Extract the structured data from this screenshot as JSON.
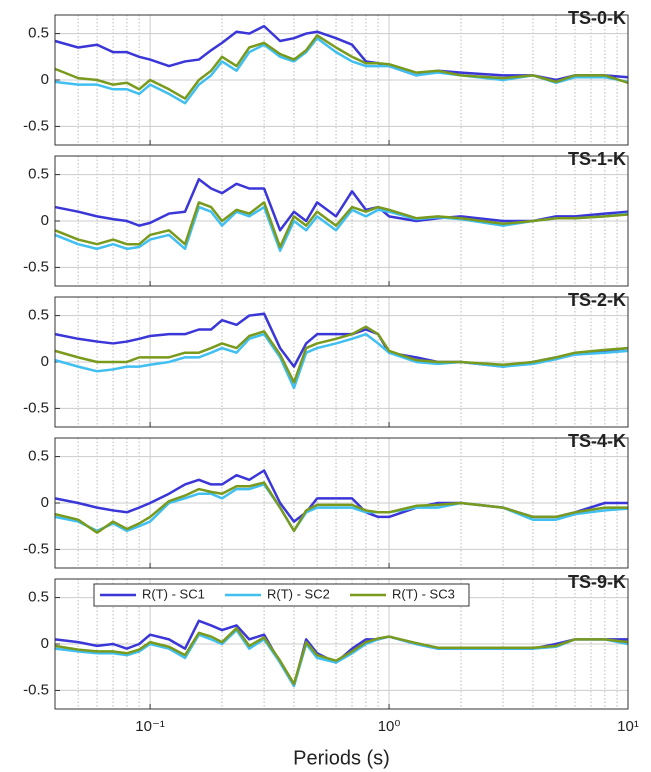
{
  "chart_data": [
    {
      "type": "line",
      "title": "TS-0-K",
      "log_x": true,
      "grid": true,
      "minor_grid": true,
      "xlim": [
        0.04,
        10
      ],
      "xticks": [
        {
          "value": 0.1,
          "label": "10⁻¹"
        },
        {
          "value": 1,
          "label": "10⁰"
        },
        {
          "value": 10,
          "label": "10¹"
        }
      ],
      "ylim": [
        -0.7,
        0.7
      ],
      "yticks": [
        -0.5,
        0,
        0.5
      ],
      "x": [
        0.04,
        0.05,
        0.06,
        0.07,
        0.08,
        0.09,
        0.1,
        0.12,
        0.14,
        0.16,
        0.18,
        0.2,
        0.23,
        0.26,
        0.3,
        0.35,
        0.4,
        0.45,
        0.5,
        0.6,
        0.7,
        0.8,
        0.9,
        1,
        1.3,
        1.6,
        2,
        3,
        4,
        5,
        6,
        8,
        10
      ],
      "series": [
        {
          "color": "#3a36d8",
          "values": [
            0.42,
            0.35,
            0.38,
            0.3,
            0.3,
            0.25,
            0.22,
            0.15,
            0.2,
            0.22,
            0.32,
            0.4,
            0.52,
            0.5,
            0.58,
            0.42,
            0.45,
            0.5,
            0.52,
            0.45,
            0.38,
            0.2,
            0.18,
            0.15,
            0.05,
            0.1,
            0.08,
            0.05,
            0.05,
            0.0,
            0.05,
            0.05,
            0.03
          ]
        },
        {
          "color": "#40bff0",
          "values": [
            -0.02,
            -0.05,
            -0.05,
            -0.1,
            -0.1,
            -0.15,
            -0.05,
            -0.15,
            -0.25,
            -0.05,
            0.05,
            0.2,
            0.1,
            0.3,
            0.38,
            0.25,
            0.2,
            0.3,
            0.45,
            0.3,
            0.2,
            0.15,
            0.15,
            0.15,
            0.05,
            0.08,
            0.05,
            0.0,
            0.05,
            -0.03,
            0.03,
            0.03,
            -0.02
          ]
        },
        {
          "color": "#7a9a1e",
          "values": [
            0.12,
            0.02,
            0.0,
            -0.05,
            -0.03,
            -0.1,
            0.0,
            -0.1,
            -0.2,
            0.0,
            0.1,
            0.25,
            0.15,
            0.35,
            0.4,
            0.28,
            0.22,
            0.32,
            0.48,
            0.35,
            0.25,
            0.18,
            0.18,
            0.17,
            0.08,
            0.1,
            0.05,
            0.02,
            0.05,
            -0.02,
            0.05,
            0.05,
            -0.03
          ]
        }
      ]
    },
    {
      "type": "line",
      "title": "TS-1-K",
      "log_x": true,
      "grid": true,
      "minor_grid": true,
      "xlim": [
        0.04,
        10
      ],
      "xticks": [
        {
          "value": 0.1,
          "label": "10⁻¹"
        },
        {
          "value": 1,
          "label": "10⁰"
        },
        {
          "value": 10,
          "label": "10¹"
        }
      ],
      "ylim": [
        -0.7,
        0.7
      ],
      "yticks": [
        -0.5,
        0,
        0.5
      ],
      "x": [
        0.04,
        0.05,
        0.06,
        0.07,
        0.08,
        0.09,
        0.1,
        0.12,
        0.14,
        0.16,
        0.18,
        0.2,
        0.23,
        0.26,
        0.3,
        0.35,
        0.4,
        0.45,
        0.5,
        0.6,
        0.7,
        0.8,
        0.9,
        1,
        1.3,
        1.6,
        2,
        3,
        4,
        5,
        6,
        8,
        10
      ],
      "series": [
        {
          "color": "#3a36d8",
          "values": [
            0.15,
            0.1,
            0.05,
            0.02,
            0.0,
            -0.05,
            -0.02,
            0.08,
            0.1,
            0.45,
            0.35,
            0.3,
            0.4,
            0.35,
            0.35,
            -0.1,
            0.1,
            0.0,
            0.2,
            0.05,
            0.32,
            0.12,
            0.15,
            0.05,
            0.0,
            0.03,
            0.05,
            0.0,
            0.0,
            0.05,
            0.05,
            0.08,
            0.1
          ]
        },
        {
          "color": "#40bff0",
          "values": [
            -0.15,
            -0.25,
            -0.3,
            -0.25,
            -0.3,
            -0.28,
            -0.2,
            -0.15,
            -0.3,
            0.15,
            0.1,
            -0.05,
            0.1,
            0.05,
            0.15,
            -0.32,
            0.0,
            -0.1,
            0.05,
            -0.1,
            0.12,
            0.05,
            0.12,
            0.1,
            0.02,
            0.04,
            0.02,
            -0.05,
            0.0,
            0.03,
            0.03,
            0.05,
            0.08
          ]
        },
        {
          "color": "#7a9a1e",
          "values": [
            -0.1,
            -0.2,
            -0.25,
            -0.2,
            -0.25,
            -0.25,
            -0.15,
            -0.1,
            -0.25,
            0.2,
            0.15,
            0.0,
            0.12,
            0.08,
            0.2,
            -0.28,
            0.05,
            -0.05,
            0.1,
            -0.05,
            0.15,
            0.1,
            0.15,
            0.12,
            0.03,
            0.05,
            0.03,
            -0.03,
            0.0,
            0.03,
            0.03,
            0.05,
            0.07
          ]
        }
      ]
    },
    {
      "type": "line",
      "title": "TS-2-K",
      "log_x": true,
      "grid": true,
      "minor_grid": true,
      "xlim": [
        0.04,
        10
      ],
      "xticks": [
        {
          "value": 0.1,
          "label": "10⁻¹"
        },
        {
          "value": 1,
          "label": "10⁰"
        },
        {
          "value": 10,
          "label": "10¹"
        }
      ],
      "ylim": [
        -0.7,
        0.7
      ],
      "yticks": [
        -0.5,
        0,
        0.5
      ],
      "x": [
        0.04,
        0.05,
        0.06,
        0.07,
        0.08,
        0.09,
        0.1,
        0.12,
        0.14,
        0.16,
        0.18,
        0.2,
        0.23,
        0.26,
        0.3,
        0.35,
        0.4,
        0.45,
        0.5,
        0.6,
        0.7,
        0.8,
        0.9,
        1,
        1.3,
        1.6,
        2,
        3,
        4,
        5,
        6,
        8,
        10
      ],
      "series": [
        {
          "color": "#3a36d8",
          "values": [
            0.3,
            0.25,
            0.22,
            0.2,
            0.22,
            0.25,
            0.28,
            0.3,
            0.3,
            0.35,
            0.35,
            0.45,
            0.4,
            0.5,
            0.52,
            0.15,
            -0.05,
            0.2,
            0.3,
            0.3,
            0.3,
            0.35,
            0.3,
            0.1,
            0.05,
            0.0,
            0.0,
            -0.05,
            0.0,
            0.05,
            0.08,
            0.12,
            0.15
          ]
        },
        {
          "color": "#40bff0",
          "values": [
            0.02,
            -0.05,
            -0.1,
            -0.08,
            -0.05,
            -0.05,
            -0.03,
            0.0,
            0.05,
            0.05,
            0.1,
            0.15,
            0.1,
            0.25,
            0.3,
            0.05,
            -0.28,
            0.1,
            0.15,
            0.2,
            0.25,
            0.3,
            0.2,
            0.1,
            0.0,
            -0.02,
            0.0,
            -0.05,
            -0.02,
            0.03,
            0.08,
            0.1,
            0.12
          ]
        },
        {
          "color": "#7a9a1e",
          "values": [
            0.12,
            0.05,
            0.0,
            0.0,
            0.0,
            0.05,
            0.05,
            0.05,
            0.1,
            0.1,
            0.15,
            0.2,
            0.15,
            0.28,
            0.33,
            0.08,
            -0.22,
            0.15,
            0.2,
            0.25,
            0.3,
            0.38,
            0.3,
            0.12,
            0.02,
            0.0,
            0.0,
            -0.03,
            0.0,
            0.05,
            0.1,
            0.13,
            0.15
          ]
        }
      ]
    },
    {
      "type": "line",
      "title": "TS-4-K",
      "log_x": true,
      "grid": true,
      "minor_grid": true,
      "xlim": [
        0.04,
        10
      ],
      "xticks": [
        {
          "value": 0.1,
          "label": "10⁻¹"
        },
        {
          "value": 1,
          "label": "10⁰"
        },
        {
          "value": 10,
          "label": "10¹"
        }
      ],
      "ylim": [
        -0.7,
        0.7
      ],
      "yticks": [
        -0.5,
        0,
        0.5
      ],
      "x": [
        0.04,
        0.05,
        0.06,
        0.07,
        0.08,
        0.09,
        0.1,
        0.12,
        0.14,
        0.16,
        0.18,
        0.2,
        0.23,
        0.26,
        0.3,
        0.35,
        0.4,
        0.45,
        0.5,
        0.6,
        0.7,
        0.8,
        0.9,
        1,
        1.3,
        1.6,
        2,
        3,
        4,
        5,
        6,
        8,
        10
      ],
      "series": [
        {
          "color": "#3a36d8",
          "values": [
            0.05,
            0.0,
            -0.05,
            -0.08,
            -0.1,
            -0.05,
            0.0,
            0.1,
            0.2,
            0.25,
            0.2,
            0.2,
            0.3,
            0.25,
            0.35,
            0.0,
            -0.2,
            -0.1,
            0.05,
            0.05,
            0.05,
            -0.1,
            -0.15,
            -0.15,
            -0.05,
            0.0,
            0.0,
            -0.05,
            -0.15,
            -0.15,
            -0.1,
            0.0,
            0.0
          ]
        },
        {
          "color": "#40bff0",
          "values": [
            -0.15,
            -0.2,
            -0.3,
            -0.22,
            -0.3,
            -0.25,
            -0.2,
            0.0,
            0.05,
            0.1,
            0.1,
            0.05,
            0.15,
            0.15,
            0.2,
            -0.05,
            -0.3,
            -0.1,
            -0.05,
            -0.05,
            -0.05,
            -0.1,
            -0.1,
            -0.1,
            -0.05,
            -0.05,
            0.0,
            -0.05,
            -0.18,
            -0.18,
            -0.12,
            -0.08,
            -0.06
          ]
        },
        {
          "color": "#7a9a1e",
          "values": [
            -0.12,
            -0.18,
            -0.32,
            -0.2,
            -0.28,
            -0.22,
            -0.15,
            0.02,
            0.08,
            0.15,
            0.12,
            0.1,
            0.18,
            0.18,
            0.22,
            -0.05,
            -0.3,
            -0.08,
            -0.02,
            -0.02,
            -0.02,
            -0.08,
            -0.1,
            -0.1,
            -0.03,
            -0.02,
            0.0,
            -0.05,
            -0.15,
            -0.15,
            -0.1,
            -0.05,
            -0.05
          ]
        }
      ]
    },
    {
      "type": "line",
      "title": "TS-9-K",
      "log_x": true,
      "grid": true,
      "minor_grid": true,
      "legend": "north",
      "xlabel": "Periods (s)",
      "xlim": [
        0.04,
        10
      ],
      "xticks": [
        {
          "value": 0.1,
          "label": "10⁻¹"
        },
        {
          "value": 1,
          "label": "10⁰"
        },
        {
          "value": 10,
          "label": "10¹"
        }
      ],
      "ylim": [
        -0.7,
        0.7
      ],
      "yticks": [
        -0.5,
        0,
        0.5
      ],
      "x": [
        0.04,
        0.05,
        0.06,
        0.07,
        0.08,
        0.09,
        0.1,
        0.12,
        0.14,
        0.16,
        0.18,
        0.2,
        0.23,
        0.26,
        0.3,
        0.35,
        0.4,
        0.45,
        0.5,
        0.6,
        0.7,
        0.8,
        0.9,
        1,
        1.3,
        1.6,
        2,
        3,
        4,
        5,
        6,
        8,
        10
      ],
      "series": [
        {
          "name": "R(T) - SC1",
          "color": "#3a36d8",
          "values": [
            0.05,
            0.02,
            -0.02,
            0.0,
            -0.05,
            0.0,
            0.1,
            0.05,
            -0.05,
            0.25,
            0.2,
            0.15,
            0.2,
            0.05,
            0.1,
            -0.2,
            -0.45,
            0.05,
            -0.1,
            -0.2,
            -0.05,
            0.05,
            0.05,
            0.08,
            0.0,
            -0.05,
            -0.05,
            -0.05,
            -0.05,
            0.0,
            0.05,
            0.05,
            0.05
          ]
        },
        {
          "name": "R(T) - SC2",
          "color": "#40bff0",
          "values": [
            -0.05,
            -0.08,
            -0.1,
            -0.1,
            -0.12,
            -0.08,
            0.0,
            -0.05,
            -0.15,
            0.1,
            0.05,
            0.0,
            0.15,
            -0.05,
            0.05,
            -0.2,
            -0.45,
            0.0,
            -0.15,
            -0.2,
            -0.1,
            0.0,
            0.05,
            0.08,
            0.0,
            -0.05,
            -0.05,
            -0.05,
            -0.05,
            -0.03,
            0.05,
            0.05,
            0.0
          ]
        },
        {
          "name": "R(T) - SC3",
          "color": "#7a9a1e",
          "values": [
            -0.02,
            -0.06,
            -0.08,
            -0.08,
            -0.1,
            -0.06,
            0.02,
            -0.03,
            -0.12,
            0.12,
            0.08,
            0.02,
            0.17,
            -0.02,
            0.07,
            -0.18,
            -0.43,
            0.02,
            -0.12,
            -0.18,
            -0.08,
            0.02,
            0.06,
            0.08,
            0.01,
            -0.04,
            -0.04,
            -0.04,
            -0.04,
            -0.02,
            0.05,
            0.05,
            0.02
          ]
        }
      ]
    }
  ]
}
